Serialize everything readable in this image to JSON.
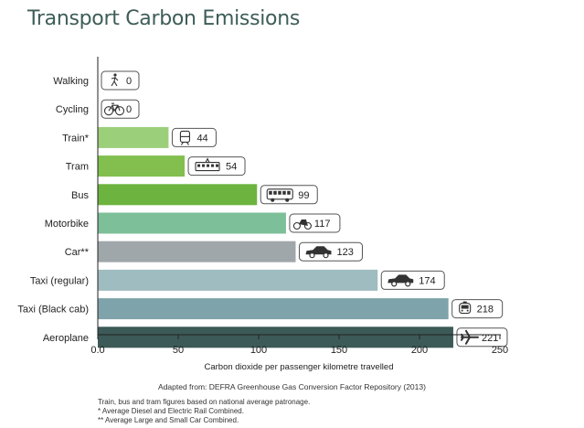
{
  "chart_data": {
    "type": "bar",
    "orientation": "horizontal",
    "title": "Transport Carbon Emissions",
    "xlabel": "Carbon dioxide per passenger kilometre travelled",
    "xlim": [
      0,
      250
    ],
    "x_ticks": [
      "0.0",
      "50",
      "100",
      "150",
      "200",
      "250"
    ],
    "grid": false,
    "categories": [
      "Walking",
      "Cycling",
      "Train*",
      "Tram",
      "Bus",
      "Motorbike",
      "Car**",
      "Taxi (regular)",
      "Taxi (Black cab)",
      "Aeroplane"
    ],
    "values": [
      0,
      0,
      44,
      54,
      99,
      117,
      123,
      174,
      218,
      221
    ],
    "icons": [
      "walking-person-icon",
      "bicycle-icon",
      "train-icon",
      "tram-icon",
      "bus-icon",
      "motorbike-icon",
      "car-icon",
      "taxi-car-icon",
      "black-cab-icon",
      "aeroplane-icon"
    ],
    "colors": [
      "#9ccf7a",
      "#9ccf7a",
      "#9ccf7a",
      "#82bf4f",
      "#6db33f",
      "#7dbf99",
      "#a0a7aa",
      "#9fbcc0",
      "#7fa3aa",
      "#3c5a57"
    ]
  },
  "source_note": "Adapted from: DEFRA Greenhouse Gas Conversion Factor Repository (2013)",
  "footnotes": [
    "Train, bus and tram figures based on national average patronage.",
    "* Average Diesel and Electric Rail Combined.",
    "** Average Large and Small Car Combined."
  ]
}
